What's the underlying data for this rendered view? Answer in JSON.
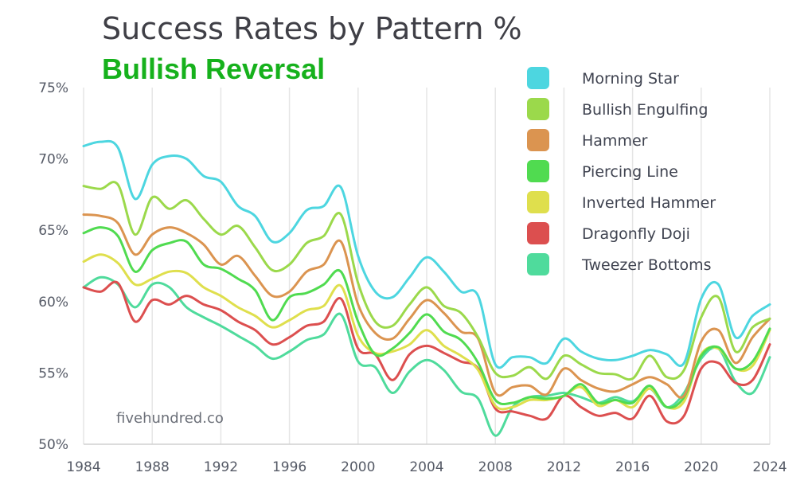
{
  "title": "Success Rates by Pattern %",
  "subtitle": "Bullish Reversal",
  "watermark": "fivehundred.co",
  "colors": {
    "subtitle": "#16b11c",
    "grid": "#e5e5e5",
    "axis": "#d0d0d0"
  },
  "chart_data": {
    "type": "line",
    "title": "Success Rates by Pattern %",
    "subtitle": "Bullish Reversal",
    "xlabel": "",
    "ylabel": "",
    "xlim": [
      1984,
      2024
    ],
    "ylim": [
      50,
      75
    ],
    "x_ticks": [
      1984,
      1988,
      1992,
      1996,
      2000,
      2004,
      2008,
      2012,
      2016,
      2020,
      2024
    ],
    "x_tick_labels": [
      "1984",
      "1988",
      "1992",
      "1996",
      "2000",
      "2004",
      "2008",
      "2012",
      "2016",
      "2020",
      "2024"
    ],
    "y_ticks": [
      50,
      55,
      60,
      65,
      70,
      75
    ],
    "y_tick_labels": [
      "50%",
      "55%",
      "60%",
      "65%",
      "70%",
      "75%"
    ],
    "grid": "vertical",
    "legend_position": "top-right",
    "x": [
      1984,
      1985,
      1986,
      1987,
      1988,
      1989,
      1990,
      1991,
      1992,
      1993,
      1994,
      1995,
      1996,
      1997,
      1998,
      1999,
      2000,
      2001,
      2002,
      2003,
      2004,
      2005,
      2006,
      2007,
      2008,
      2009,
      2010,
      2011,
      2012,
      2013,
      2014,
      2015,
      2016,
      2017,
      2018,
      2019,
      2020,
      2021,
      2022,
      2023,
      2024
    ],
    "series": [
      {
        "name": "Morning Star",
        "color": "#4dd6e0",
        "values": [
          70.9,
          71.2,
          70.8,
          67.2,
          69.6,
          70.2,
          70.0,
          68.8,
          68.4,
          66.7,
          66.0,
          64.2,
          64.8,
          66.4,
          66.7,
          68.0,
          63.2,
          60.7,
          60.3,
          61.7,
          63.1,
          62.1,
          60.7,
          60.4,
          55.6,
          56.1,
          56.1,
          55.7,
          57.4,
          56.5,
          56.0,
          55.9,
          56.2,
          56.6,
          56.3,
          55.7,
          60.2,
          61.2,
          57.5,
          59.0,
          59.8
        ]
      },
      {
        "name": "Bullish Engulfing",
        "color": "#9bd94b",
        "values": [
          68.1,
          67.9,
          68.2,
          64.7,
          67.3,
          66.5,
          67.1,
          65.8,
          64.7,
          65.3,
          63.8,
          62.2,
          62.6,
          64.1,
          64.6,
          66.1,
          61.3,
          58.6,
          58.3,
          59.8,
          61.0,
          59.7,
          59.2,
          57.5,
          55.0,
          54.8,
          55.4,
          54.6,
          56.2,
          55.6,
          55.0,
          54.9,
          54.6,
          56.2,
          54.7,
          55.2,
          58.9,
          60.3,
          56.5,
          58.2,
          58.8
        ]
      },
      {
        "name": "Hammer",
        "color": "#db9450",
        "values": [
          66.1,
          66.0,
          65.5,
          63.3,
          64.7,
          65.2,
          64.8,
          64.0,
          62.6,
          63.2,
          61.8,
          60.4,
          60.7,
          62.1,
          62.6,
          64.2,
          59.8,
          57.8,
          57.4,
          58.8,
          60.1,
          59.2,
          57.9,
          57.4,
          53.6,
          54.0,
          54.1,
          53.5,
          55.3,
          54.5,
          53.9,
          53.7,
          54.2,
          54.7,
          54.2,
          53.4,
          57.2,
          58.0,
          55.7,
          57.5,
          58.8
        ]
      },
      {
        "name": "Piercing Line",
        "color": "#50db50",
        "values": [
          64.8,
          65.2,
          64.6,
          62.1,
          63.6,
          64.1,
          64.2,
          62.6,
          62.3,
          61.6,
          60.8,
          58.7,
          60.3,
          60.6,
          61.2,
          62.1,
          58.6,
          56.3,
          56.7,
          57.8,
          59.1,
          57.9,
          57.3,
          55.7,
          53.1,
          52.9,
          53.3,
          53.2,
          53.4,
          54.2,
          52.9,
          53.1,
          52.9,
          54.1,
          52.6,
          53.3,
          56.2,
          56.8,
          55.3,
          55.8,
          58.1
        ]
      },
      {
        "name": "Inverted Hammer",
        "color": "#dfdf4d",
        "values": [
          62.8,
          63.3,
          62.7,
          61.2,
          61.6,
          62.1,
          62.0,
          61.0,
          60.4,
          59.6,
          59.0,
          58.2,
          58.7,
          59.4,
          59.7,
          61.1,
          57.6,
          56.4,
          56.5,
          57.0,
          58.0,
          56.9,
          56.2,
          55.2,
          52.7,
          52.6,
          53.1,
          53.1,
          53.4,
          54.0,
          52.7,
          53.1,
          52.6,
          53.9,
          52.6,
          53.0,
          56.3,
          56.7,
          55.3,
          55.5,
          58.0
        ]
      },
      {
        "name": "Dragonfly Doji",
        "color": "#dc4f4f",
        "values": [
          61.0,
          60.7,
          61.3,
          58.6,
          60.1,
          59.8,
          60.4,
          59.8,
          59.4,
          58.6,
          58.0,
          57.0,
          57.5,
          58.3,
          58.6,
          60.2,
          56.7,
          56.3,
          54.5,
          56.3,
          56.9,
          56.4,
          55.8,
          55.3,
          52.5,
          52.3,
          52.0,
          51.8,
          53.4,
          52.6,
          52.0,
          52.2,
          51.8,
          53.4,
          51.6,
          52.0,
          55.3,
          55.7,
          54.3,
          54.5,
          57.0
        ]
      },
      {
        "name": "Tweezer Bottoms",
        "color": "#4fdb9c",
        "values": [
          61.0,
          61.7,
          61.2,
          59.6,
          61.2,
          61.0,
          59.6,
          58.9,
          58.3,
          57.6,
          56.9,
          56.0,
          56.5,
          57.3,
          57.7,
          59.1,
          55.8,
          55.4,
          53.6,
          55.1,
          55.9,
          55.2,
          53.7,
          53.2,
          50.6,
          52.6,
          53.3,
          53.4,
          53.6,
          53.3,
          52.9,
          53.3,
          53.0,
          53.9,
          52.6,
          53.6,
          56.0,
          56.7,
          54.4,
          53.6,
          56.1
        ]
      }
    ]
  }
}
